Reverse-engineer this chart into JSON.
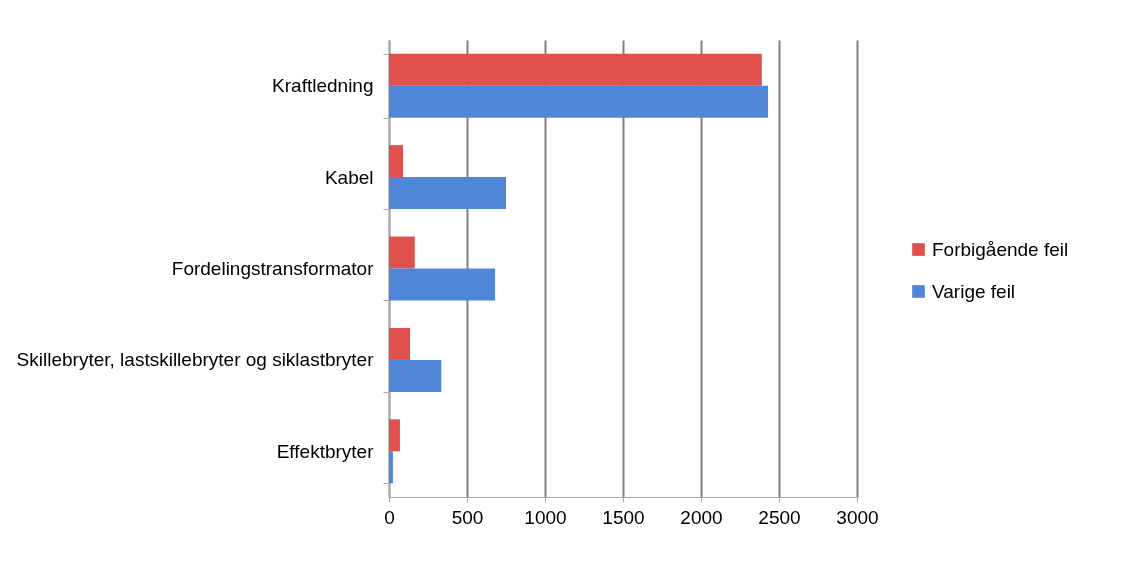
{
  "chart_data": {
    "type": "bar",
    "orientation": "horizontal",
    "categories": [
      "Kraftledning",
      "Kabel",
      "Fordelingstransformator",
      "Skillebryter, lastskillebryter og siklastbryter",
      "Effektbryter"
    ],
    "series": [
      {
        "name": "Forbigående feil",
        "color": "#e0504d",
        "values": [
          2390,
          90,
          165,
          135,
          70
        ]
      },
      {
        "name": "Varige feil",
        "color": "#4f86d8",
        "values": [
          2430,
          750,
          680,
          335,
          25
        ]
      }
    ],
    "xlim": [
      0,
      3000
    ],
    "xticks": [
      0,
      500,
      1000,
      1500,
      2000,
      2500,
      3000
    ],
    "grid": "x",
    "legend": "right"
  }
}
